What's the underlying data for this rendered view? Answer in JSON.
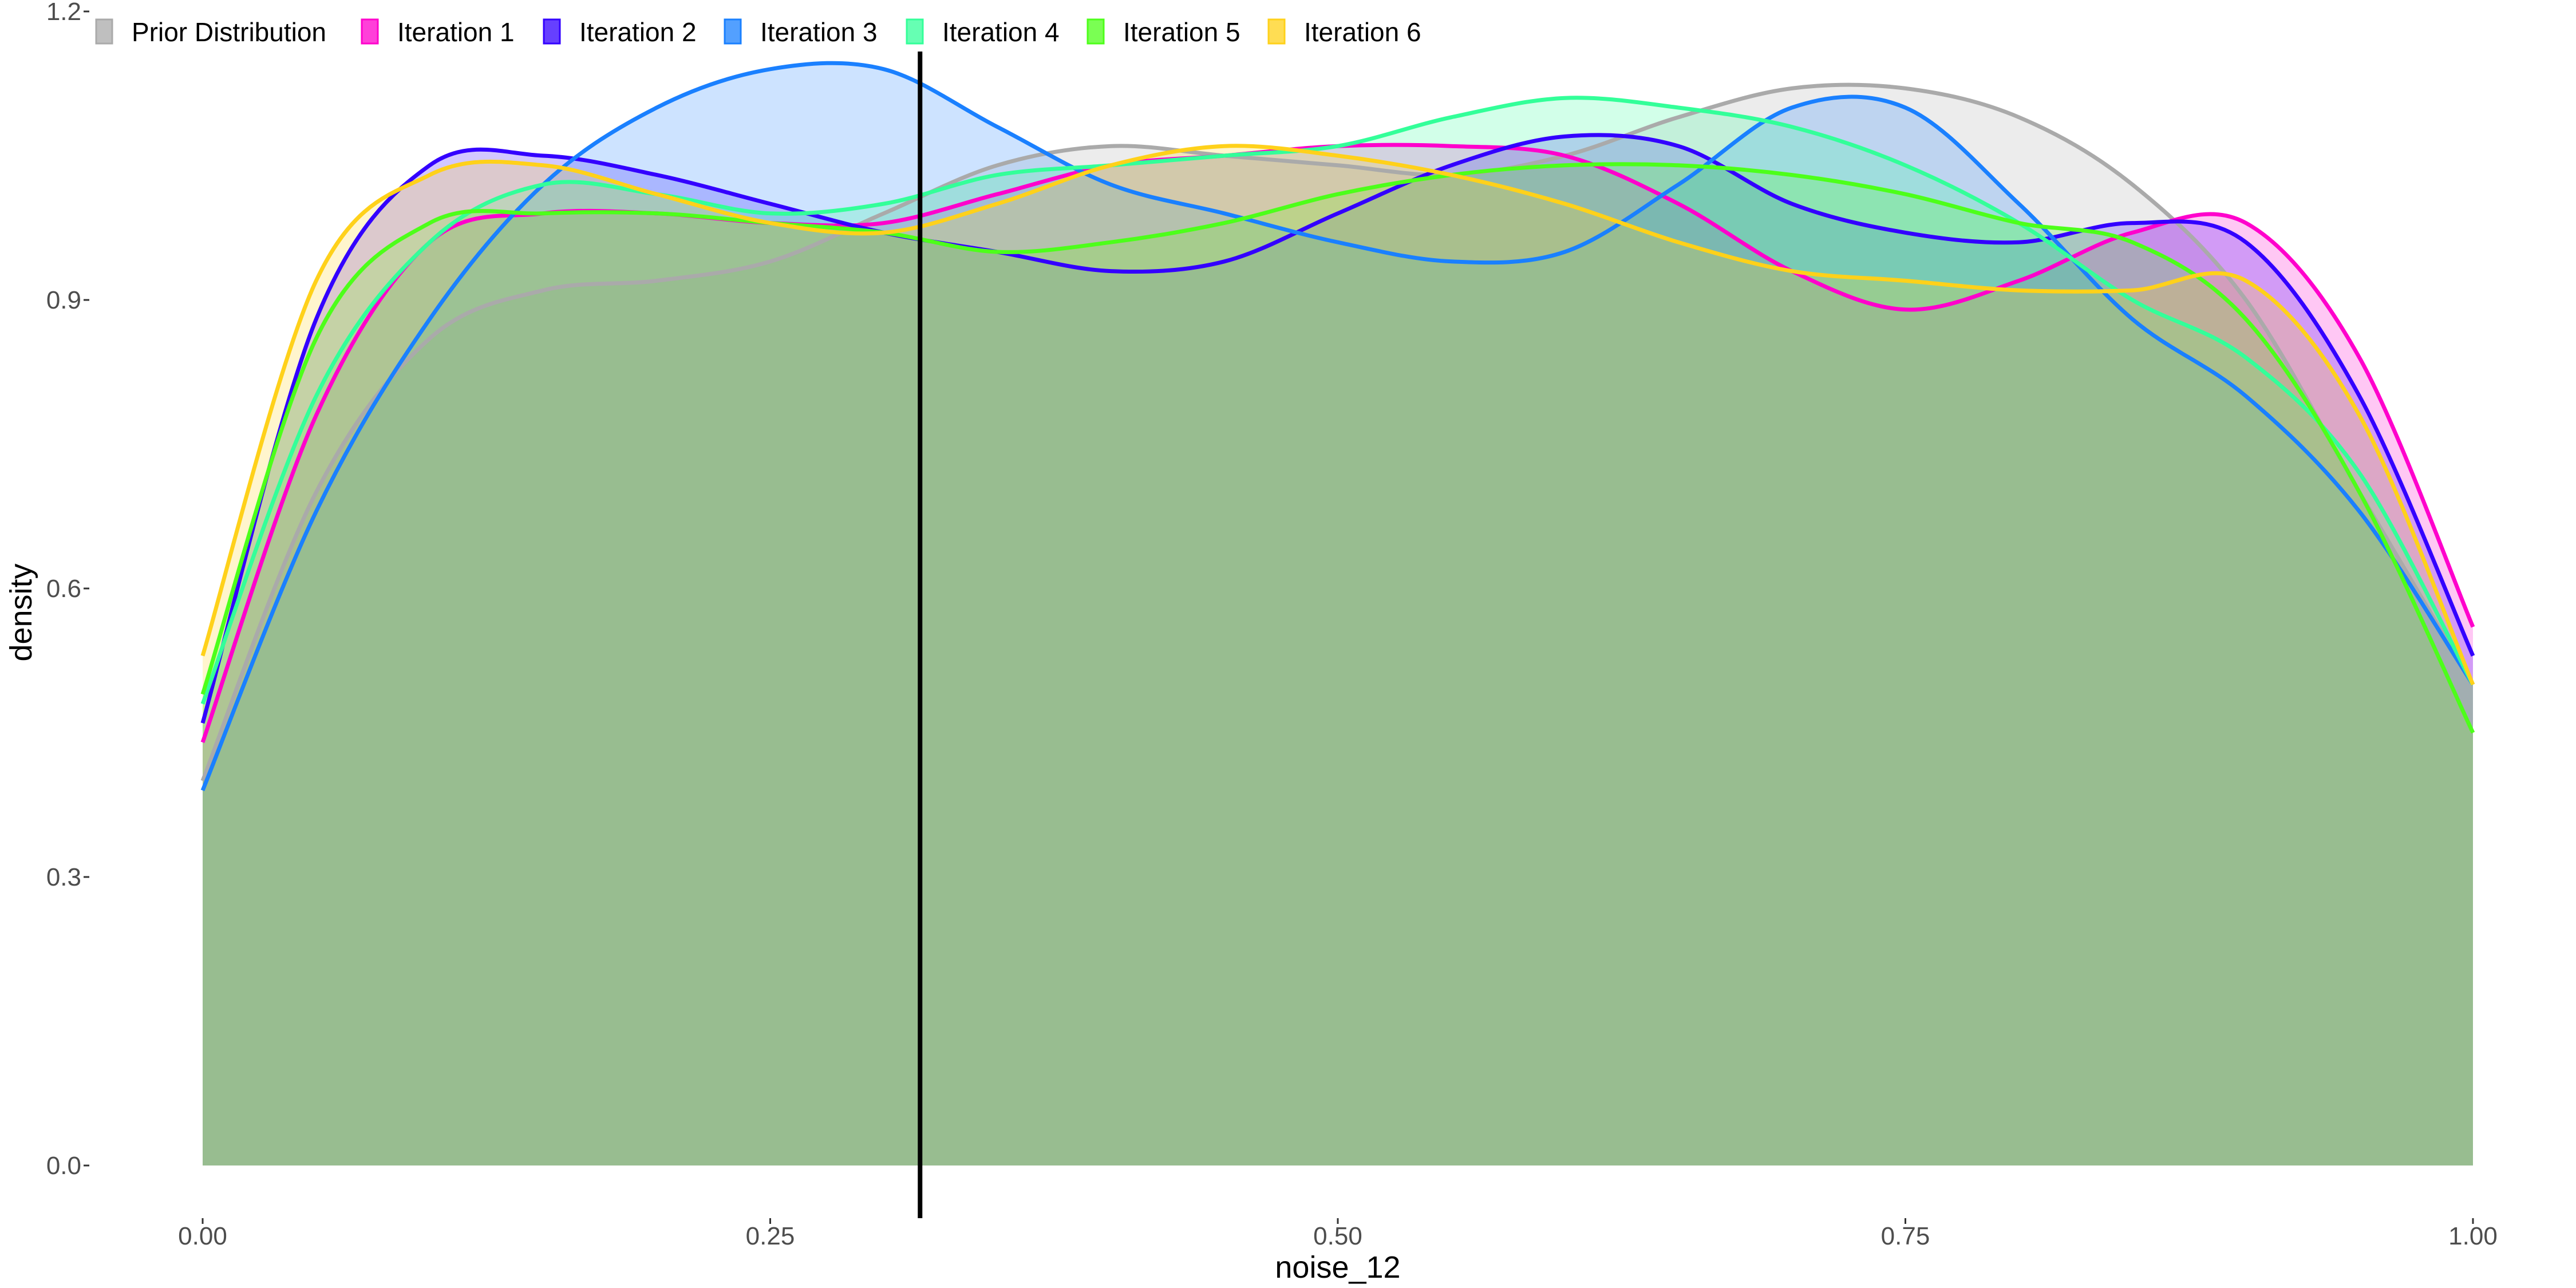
{
  "chart_data": {
    "type": "area",
    "subtype": "density",
    "title": "",
    "xlabel": "noise_12",
    "ylabel": "density",
    "xlim": [
      0,
      1
    ],
    "ylim": [
      0,
      1.2
    ],
    "x_ticks": [
      0,
      0.25,
      0.5,
      0.75,
      1.0
    ],
    "x_tick_labels": [
      "0.00",
      "0.25",
      "0.50",
      "0.75",
      "1.00"
    ],
    "y_ticks": [
      0,
      0.3,
      0.6,
      0.9,
      1.2
    ],
    "y_tick_labels": [
      "0.0",
      "0.3",
      "0.6",
      "0.9",
      "1.2"
    ],
    "grid": false,
    "legend_position": "top-left",
    "reference_line": {
      "orientation": "vertical",
      "x": 0.316,
      "color": "#000000"
    },
    "x": [
      0.0,
      0.05,
      0.1,
      0.15,
      0.2,
      0.25,
      0.3,
      0.35,
      0.4,
      0.45,
      0.5,
      0.55,
      0.6,
      0.65,
      0.7,
      0.75,
      0.8,
      0.85,
      0.9,
      0.95,
      1.0
    ],
    "series": [
      {
        "name": "Prior Distribution",
        "color": "#aaaaaa",
        "values": [
          0.4,
          0.7,
          0.86,
          0.91,
          0.92,
          0.94,
          0.99,
          1.04,
          1.06,
          1.05,
          1.04,
          1.03,
          1.05,
          1.09,
          1.12,
          1.12,
          1.09,
          1.02,
          0.9,
          0.7,
          0.5
        ]
      },
      {
        "name": "Iteration 1",
        "color": "#ff00cc",
        "values": [
          0.44,
          0.78,
          0.96,
          0.99,
          0.99,
          0.98,
          0.98,
          1.01,
          1.04,
          1.05,
          1.06,
          1.06,
          1.05,
          1.0,
          0.93,
          0.89,
          0.92,
          0.97,
          0.98,
          0.84,
          0.56
        ]
      },
      {
        "name": "Iteration 2",
        "color": "#3300ff",
        "values": [
          0.46,
          0.88,
          1.04,
          1.05,
          1.03,
          1.0,
          0.97,
          0.95,
          0.93,
          0.94,
          0.99,
          1.04,
          1.07,
          1.06,
          1.0,
          0.97,
          0.96,
          0.98,
          0.96,
          0.8,
          0.53
        ]
      },
      {
        "name": "Iteration 3",
        "color": "#1a80ff",
        "values": [
          0.39,
          0.68,
          0.88,
          1.02,
          1.1,
          1.14,
          1.14,
          1.08,
          1.02,
          0.99,
          0.96,
          0.94,
          0.95,
          1.02,
          1.1,
          1.1,
          1.0,
          0.88,
          0.8,
          0.68,
          0.5
        ]
      },
      {
        "name": "Iteration 4",
        "color": "#33ff99",
        "values": [
          0.48,
          0.8,
          0.96,
          1.02,
          1.01,
          0.99,
          1.0,
          1.03,
          1.04,
          1.05,
          1.06,
          1.09,
          1.11,
          1.1,
          1.08,
          1.04,
          0.98,
          0.9,
          0.84,
          0.72,
          0.5
        ]
      },
      {
        "name": "Iteration 5",
        "color": "#4dff1a",
        "values": [
          0.49,
          0.86,
          0.98,
          0.99,
          0.99,
          0.98,
          0.97,
          0.95,
          0.96,
          0.98,
          1.01,
          1.03,
          1.04,
          1.04,
          1.03,
          1.01,
          0.98,
          0.96,
          0.88,
          0.7,
          0.45
        ]
      },
      {
        "name": "Iteration 6",
        "color": "#ffd11a",
        "values": [
          0.53,
          0.92,
          1.03,
          1.04,
          1.01,
          0.98,
          0.97,
          1.0,
          1.04,
          1.06,
          1.05,
          1.03,
          1.0,
          0.96,
          0.93,
          0.92,
          0.91,
          0.91,
          0.92,
          0.78,
          0.5
        ]
      }
    ]
  }
}
